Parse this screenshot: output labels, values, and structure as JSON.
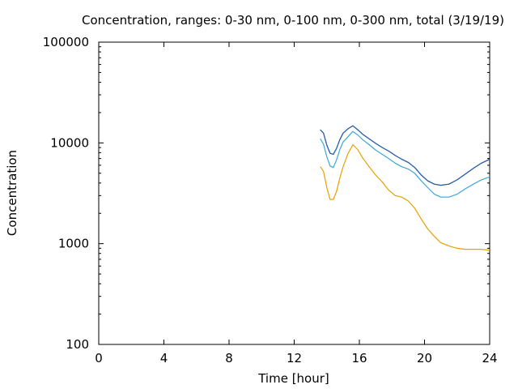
{
  "chart_data": {
    "type": "line",
    "title": "Concentration, ranges: 0-30 nm, 0-100 nm, 0-300 nm, total (3/19/19)",
    "xlabel": "Time [hour]",
    "ylabel": "Concentration",
    "xlim": [
      0,
      24
    ],
    "ylim": [
      100,
      100000
    ],
    "yscale": "log",
    "x_ticks": [
      "0",
      "4",
      "8",
      "12",
      "16",
      "20",
      "24"
    ],
    "y_ticks": [
      "100",
      "1000",
      "10000",
      "100000"
    ],
    "grid": false,
    "legend": "none",
    "series": [
      {
        "color": "#e6a000",
        "points": [
          [
            13.6,
            5800
          ],
          [
            13.8,
            5200
          ],
          [
            14.0,
            3600
          ],
          [
            14.2,
            2750
          ],
          [
            14.4,
            2750
          ],
          [
            14.6,
            3300
          ],
          [
            14.8,
            4500
          ],
          [
            15.0,
            5800
          ],
          [
            15.3,
            7800
          ],
          [
            15.6,
            9600
          ],
          [
            15.9,
            8600
          ],
          [
            16.2,
            7100
          ],
          [
            16.6,
            5800
          ],
          [
            17.0,
            4800
          ],
          [
            17.4,
            4100
          ],
          [
            17.8,
            3400
          ],
          [
            18.2,
            3000
          ],
          [
            18.6,
            2900
          ],
          [
            19.0,
            2650
          ],
          [
            19.4,
            2250
          ],
          [
            19.8,
            1750
          ],
          [
            20.2,
            1400
          ],
          [
            20.6,
            1180
          ],
          [
            21.0,
            1020
          ],
          [
            21.5,
            950
          ],
          [
            22.0,
            900
          ],
          [
            22.5,
            880
          ],
          [
            23.0,
            880
          ],
          [
            23.5,
            880
          ],
          [
            24.0,
            860
          ]
        ]
      },
      {
        "color": "#3ba7d9",
        "points": [
          [
            13.6,
            11000
          ],
          [
            13.8,
            9700
          ],
          [
            14.0,
            7300
          ],
          [
            14.2,
            5900
          ],
          [
            14.4,
            5700
          ],
          [
            14.6,
            6800
          ],
          [
            14.8,
            8600
          ],
          [
            15.0,
            10200
          ],
          [
            15.3,
            11500
          ],
          [
            15.6,
            13000
          ],
          [
            15.9,
            12000
          ],
          [
            16.2,
            10800
          ],
          [
            16.6,
            9600
          ],
          [
            17.0,
            8500
          ],
          [
            17.4,
            7700
          ],
          [
            17.8,
            7000
          ],
          [
            18.2,
            6300
          ],
          [
            18.6,
            5800
          ],
          [
            19.0,
            5500
          ],
          [
            19.4,
            5000
          ],
          [
            19.8,
            4200
          ],
          [
            20.2,
            3600
          ],
          [
            20.6,
            3100
          ],
          [
            21.0,
            2900
          ],
          [
            21.5,
            2900
          ],
          [
            22.0,
            3100
          ],
          [
            22.5,
            3500
          ],
          [
            23.0,
            3900
          ],
          [
            23.5,
            4300
          ],
          [
            24.0,
            4600
          ]
        ]
      },
      {
        "color": "#1a237e",
        "points": [
          [
            13.6,
            13500
          ],
          [
            13.8,
            12500
          ],
          [
            14.0,
            9500
          ],
          [
            14.2,
            7900
          ],
          [
            14.4,
            7700
          ],
          [
            14.6,
            8800
          ],
          [
            14.8,
            10800
          ],
          [
            15.0,
            12500
          ],
          [
            15.3,
            13800
          ],
          [
            15.6,
            14800
          ],
          [
            15.9,
            13500
          ],
          [
            16.2,
            12200
          ],
          [
            16.6,
            11000
          ],
          [
            17.0,
            9900
          ],
          [
            17.4,
            9000
          ],
          [
            17.8,
            8300
          ],
          [
            18.2,
            7500
          ],
          [
            18.6,
            6900
          ],
          [
            19.0,
            6400
          ],
          [
            19.4,
            5700
          ],
          [
            19.8,
            4800
          ],
          [
            20.2,
            4200
          ],
          [
            20.6,
            3900
          ],
          [
            21.0,
            3800
          ],
          [
            21.5,
            3900
          ],
          [
            22.0,
            4300
          ],
          [
            22.5,
            4900
          ],
          [
            23.0,
            5600
          ],
          [
            23.5,
            6300
          ],
          [
            24.0,
            6900
          ]
        ]
      },
      {
        "color": "#1f6fb2",
        "points": [
          [
            13.6,
            13500
          ],
          [
            13.8,
            12500
          ],
          [
            14.0,
            9500
          ],
          [
            14.2,
            7900
          ],
          [
            14.4,
            7700
          ],
          [
            14.6,
            8800
          ],
          [
            14.8,
            10800
          ],
          [
            15.0,
            12500
          ],
          [
            15.3,
            13800
          ],
          [
            15.6,
            14800
          ],
          [
            15.9,
            13500
          ],
          [
            16.2,
            12200
          ],
          [
            16.6,
            11000
          ],
          [
            17.0,
            9900
          ],
          [
            17.4,
            9000
          ],
          [
            17.8,
            8300
          ],
          [
            18.2,
            7500
          ],
          [
            18.6,
            6900
          ],
          [
            19.0,
            6400
          ],
          [
            19.4,
            5700
          ],
          [
            19.8,
            4800
          ],
          [
            20.2,
            4200
          ],
          [
            20.6,
            3900
          ],
          [
            21.0,
            3800
          ],
          [
            21.5,
            3900
          ],
          [
            22.0,
            4300
          ],
          [
            22.5,
            4900
          ],
          [
            23.0,
            5600
          ],
          [
            23.5,
            6300
          ],
          [
            24.0,
            6900
          ]
        ]
      }
    ]
  }
}
